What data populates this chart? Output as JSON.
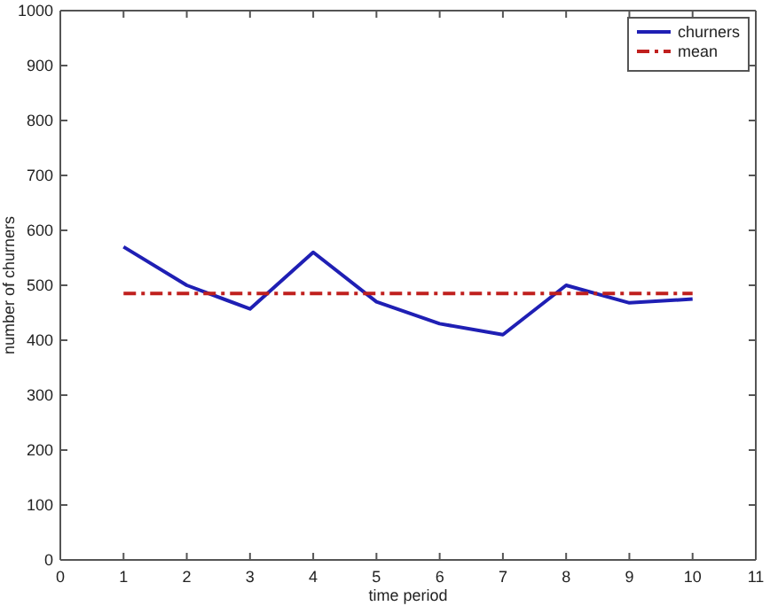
{
  "chart_data": {
    "type": "line",
    "xlabel": "time period",
    "ylabel": "number of churners",
    "x": [
      1,
      2,
      3,
      4,
      5,
      6,
      7,
      8,
      9,
      10
    ],
    "series": [
      {
        "name": "churners",
        "color": "#1f1fb4",
        "values": [
          570,
          500,
          457,
          560,
          470,
          430,
          410,
          500,
          468,
          475
        ],
        "line_style": "solid"
      },
      {
        "name": "mean",
        "color": "#c0201e",
        "x": [
          1,
          10
        ],
        "values": [
          485,
          485
        ],
        "line_style": "dashed"
      }
    ],
    "xlim": [
      0,
      11
    ],
    "xticks": [
      0,
      1,
      2,
      3,
      4,
      5,
      6,
      7,
      8,
      9,
      10,
      11
    ],
    "ylim": [
      0,
      1000
    ],
    "yticks": [
      0,
      100,
      200,
      300,
      400,
      500,
      600,
      700,
      800,
      900,
      1000
    ],
    "grid": false,
    "legend": "top right",
    "marker": "none"
  }
}
